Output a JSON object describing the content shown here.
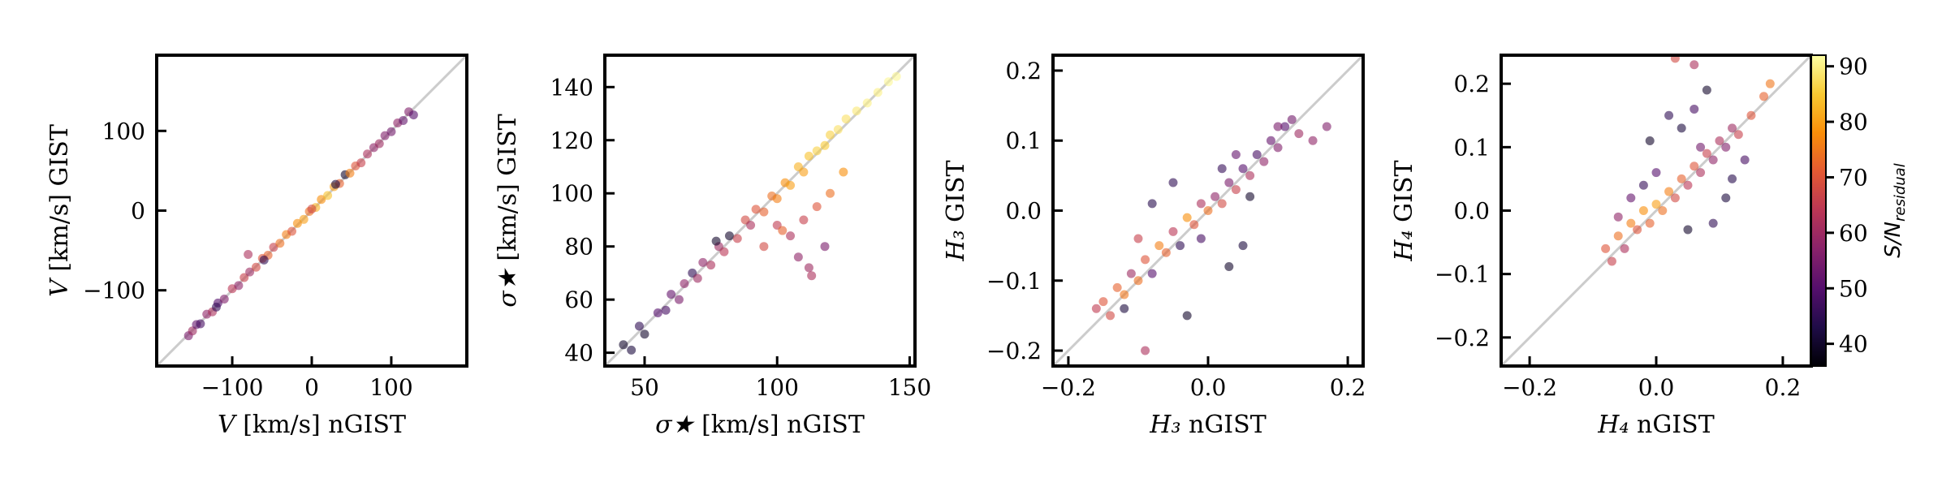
{
  "chart_data": [
    {
      "type": "scatter",
      "id": "V",
      "xlabel_sym": "V",
      "xlabel_unit": " [km/s]  nGIST",
      "ylabel_sym": "V",
      "ylabel_unit": " [km/s]  GIST",
      "xlim": [
        -195,
        195
      ],
      "ylim": [
        -195,
        195
      ],
      "xticks": [
        -100,
        0,
        100
      ],
      "yticks": [
        -100,
        0,
        100
      ],
      "xtick_labels": [
        "−100",
        "0",
        "100"
      ],
      "ytick_labels": [
        "−100",
        "0",
        "100"
      ],
      "points": [
        {
          "x": -155,
          "y": -157,
          "c": 55
        },
        {
          "x": -150,
          "y": -151,
          "c": 60
        },
        {
          "x": -145,
          "y": -143,
          "c": 52
        },
        {
          "x": -140,
          "y": -142,
          "c": 48
        },
        {
          "x": -132,
          "y": -130,
          "c": 58
        },
        {
          "x": -125,
          "y": -127,
          "c": 62
        },
        {
          "x": -118,
          "y": -116,
          "c": 50
        },
        {
          "x": -110,
          "y": -111,
          "c": 56
        },
        {
          "x": -100,
          "y": -98,
          "c": 64
        },
        {
          "x": -92,
          "y": -94,
          "c": 58
        },
        {
          "x": -85,
          "y": -84,
          "c": 66
        },
        {
          "x": -80,
          "y": -55,
          "c": 62
        },
        {
          "x": -78,
          "y": -77,
          "c": 60
        },
        {
          "x": -70,
          "y": -71,
          "c": 68
        },
        {
          "x": -62,
          "y": -60,
          "c": 70
        },
        {
          "x": -55,
          "y": -56,
          "c": 72
        },
        {
          "x": -48,
          "y": -46,
          "c": 66
        },
        {
          "x": -40,
          "y": -41,
          "c": 74
        },
        {
          "x": -32,
          "y": -30,
          "c": 76
        },
        {
          "x": -25,
          "y": -26,
          "c": 70
        },
        {
          "x": -18,
          "y": -16,
          "c": 78
        },
        {
          "x": -10,
          "y": -11,
          "c": 80
        },
        {
          "x": -3,
          "y": -1,
          "c": 74
        },
        {
          "x": 5,
          "y": 4,
          "c": 82
        },
        {
          "x": 12,
          "y": 14,
          "c": 78
        },
        {
          "x": 20,
          "y": 19,
          "c": 84
        },
        {
          "x": 28,
          "y": 30,
          "c": 80
        },
        {
          "x": 35,
          "y": 34,
          "c": 72
        },
        {
          "x": 42,
          "y": 45,
          "c": 40
        },
        {
          "x": 48,
          "y": 47,
          "c": 76
        },
        {
          "x": 55,
          "y": 56,
          "c": 70
        },
        {
          "x": 62,
          "y": 60,
          "c": 66
        },
        {
          "x": 70,
          "y": 71,
          "c": 62
        },
        {
          "x": 78,
          "y": 79,
          "c": 58
        },
        {
          "x": 85,
          "y": 84,
          "c": 60
        },
        {
          "x": 92,
          "y": 94,
          "c": 56
        },
        {
          "x": 100,
          "y": 99,
          "c": 54
        },
        {
          "x": 108,
          "y": 110,
          "c": 58
        },
        {
          "x": 115,
          "y": 113,
          "c": 52
        },
        {
          "x": 122,
          "y": 124,
          "c": 56
        },
        {
          "x": 128,
          "y": 120,
          "c": 50
        },
        {
          "x": -60,
          "y": -62,
          "c": 45
        },
        {
          "x": 30,
          "y": 33,
          "c": 42
        },
        {
          "x": 0,
          "y": 2,
          "c": 68
        },
        {
          "x": -120,
          "y": -121,
          "c": 46
        }
      ]
    },
    {
      "type": "scatter",
      "id": "sigma",
      "xlabel_sym": "σ★",
      "xlabel_unit": " [km/s]  nGIST",
      "ylabel_sym": "σ★",
      "ylabel_unit": " [km/s]  GIST",
      "xlim": [
        35,
        152
      ],
      "ylim": [
        35,
        152
      ],
      "xticks": [
        50,
        100,
        150
      ],
      "yticks": [
        40,
        60,
        80,
        100,
        120,
        140
      ],
      "xtick_labels": [
        "50",
        "100",
        "150"
      ],
      "ytick_labels": [
        "40",
        "60",
        "80",
        "100",
        "120",
        "140"
      ],
      "points": [
        {
          "x": 42,
          "y": 43,
          "c": 40
        },
        {
          "x": 45,
          "y": 41,
          "c": 42
        },
        {
          "x": 48,
          "y": 50,
          "c": 45
        },
        {
          "x": 50,
          "y": 47,
          "c": 40
        },
        {
          "x": 55,
          "y": 55,
          "c": 50
        },
        {
          "x": 58,
          "y": 56,
          "c": 48
        },
        {
          "x": 60,
          "y": 62,
          "c": 52
        },
        {
          "x": 63,
          "y": 60,
          "c": 55
        },
        {
          "x": 65,
          "y": 66,
          "c": 58
        },
        {
          "x": 68,
          "y": 70,
          "c": 45
        },
        {
          "x": 70,
          "y": 68,
          "c": 60
        },
        {
          "x": 72,
          "y": 74,
          "c": 58
        },
        {
          "x": 75,
          "y": 73,
          "c": 62
        },
        {
          "x": 78,
          "y": 80,
          "c": 60
        },
        {
          "x": 80,
          "y": 78,
          "c": 64
        },
        {
          "x": 82,
          "y": 84,
          "c": 40
        },
        {
          "x": 85,
          "y": 83,
          "c": 66
        },
        {
          "x": 88,
          "y": 90,
          "c": 68
        },
        {
          "x": 90,
          "y": 88,
          "c": 62
        },
        {
          "x": 92,
          "y": 94,
          "c": 70
        },
        {
          "x": 95,
          "y": 93,
          "c": 72
        },
        {
          "x": 98,
          "y": 99,
          "c": 74
        },
        {
          "x": 100,
          "y": 98,
          "c": 76
        },
        {
          "x": 103,
          "y": 104,
          "c": 78
        },
        {
          "x": 105,
          "y": 103,
          "c": 80
        },
        {
          "x": 108,
          "y": 110,
          "c": 82
        },
        {
          "x": 110,
          "y": 108,
          "c": 80
        },
        {
          "x": 112,
          "y": 114,
          "c": 84
        },
        {
          "x": 115,
          "y": 116,
          "c": 86
        },
        {
          "x": 118,
          "y": 118,
          "c": 85
        },
        {
          "x": 120,
          "y": 122,
          "c": 86
        },
        {
          "x": 123,
          "y": 124,
          "c": 88
        },
        {
          "x": 126,
          "y": 128,
          "c": 88
        },
        {
          "x": 130,
          "y": 131,
          "c": 89
        },
        {
          "x": 134,
          "y": 134,
          "c": 90
        },
        {
          "x": 138,
          "y": 138,
          "c": 90
        },
        {
          "x": 142,
          "y": 142,
          "c": 91
        },
        {
          "x": 145,
          "y": 144,
          "c": 91
        },
        {
          "x": 77,
          "y": 82,
          "c": 40
        },
        {
          "x": 100,
          "y": 88,
          "c": 65
        },
        {
          "x": 105,
          "y": 84,
          "c": 62
        },
        {
          "x": 110,
          "y": 90,
          "c": 66
        },
        {
          "x": 115,
          "y": 95,
          "c": 70
        },
        {
          "x": 108,
          "y": 76,
          "c": 58
        },
        {
          "x": 112,
          "y": 72,
          "c": 60
        },
        {
          "x": 118,
          "y": 80,
          "c": 55
        },
        {
          "x": 120,
          "y": 100,
          "c": 74
        },
        {
          "x": 113,
          "y": 69,
          "c": 62
        },
        {
          "x": 125,
          "y": 108,
          "c": 78
        },
        {
          "x": 95,
          "y": 80,
          "c": 68
        },
        {
          "x": 102,
          "y": 86,
          "c": 72
        }
      ]
    },
    {
      "type": "scatter",
      "id": "H3",
      "xlabel_sym": "H₃",
      "xlabel_unit": " nGIST",
      "ylabel_sym": "H₃",
      "ylabel_unit": " GIST",
      "xlim": [
        -0.222,
        0.222
      ],
      "ylim": [
        -0.222,
        0.222
      ],
      "xticks": [
        -0.2,
        0.0,
        0.2
      ],
      "yticks": [
        -0.2,
        -0.1,
        0.0,
        0.1,
        0.2
      ],
      "xtick_labels": [
        "−0.2",
        "0.0",
        "0.2"
      ],
      "ytick_labels": [
        "−0.2",
        "−0.1",
        "0.0",
        "0.1",
        "0.2"
      ],
      "points": [
        {
          "x": -0.16,
          "y": -0.14,
          "c": 65
        },
        {
          "x": -0.15,
          "y": -0.13,
          "c": 70
        },
        {
          "x": -0.14,
          "y": -0.15,
          "c": 68
        },
        {
          "x": -0.13,
          "y": -0.11,
          "c": 72
        },
        {
          "x": -0.12,
          "y": -0.12,
          "c": 75
        },
        {
          "x": -0.11,
          "y": -0.09,
          "c": 60
        },
        {
          "x": -0.1,
          "y": -0.1,
          "c": 74
        },
        {
          "x": -0.09,
          "y": -0.07,
          "c": 70
        },
        {
          "x": -0.08,
          "y": -0.09,
          "c": 50
        },
        {
          "x": -0.07,
          "y": -0.05,
          "c": 76
        },
        {
          "x": -0.06,
          "y": -0.06,
          "c": 72
        },
        {
          "x": -0.05,
          "y": -0.03,
          "c": 64
        },
        {
          "x": -0.04,
          "y": -0.05,
          "c": 45
        },
        {
          "x": -0.03,
          "y": -0.01,
          "c": 78
        },
        {
          "x": -0.02,
          "y": -0.02,
          "c": 70
        },
        {
          "x": -0.01,
          "y": 0.01,
          "c": 62
        },
        {
          "x": 0.0,
          "y": 0.0,
          "c": 74
        },
        {
          "x": 0.01,
          "y": 0.02,
          "c": 58
        },
        {
          "x": 0.02,
          "y": 0.01,
          "c": 68
        },
        {
          "x": 0.03,
          "y": 0.04,
          "c": 55
        },
        {
          "x": 0.04,
          "y": 0.03,
          "c": 66
        },
        {
          "x": 0.05,
          "y": 0.06,
          "c": 50
        },
        {
          "x": 0.06,
          "y": 0.05,
          "c": 62
        },
        {
          "x": 0.07,
          "y": 0.08,
          "c": 48
        },
        {
          "x": 0.08,
          "y": 0.07,
          "c": 58
        },
        {
          "x": 0.09,
          "y": 0.1,
          "c": 52
        },
        {
          "x": 0.1,
          "y": 0.09,
          "c": 56
        },
        {
          "x": 0.11,
          "y": 0.12,
          "c": 50
        },
        {
          "x": 0.12,
          "y": 0.13,
          "c": 54
        },
        {
          "x": 0.13,
          "y": 0.11,
          "c": 60
        },
        {
          "x": 0.15,
          "y": 0.1,
          "c": 58
        },
        {
          "x": 0.17,
          "y": 0.12,
          "c": 56
        },
        {
          "x": -0.09,
          "y": -0.2,
          "c": 62
        },
        {
          "x": -0.03,
          "y": -0.15,
          "c": 40
        },
        {
          "x": -0.05,
          "y": 0.04,
          "c": 45
        },
        {
          "x": 0.05,
          "y": -0.05,
          "c": 42
        },
        {
          "x": 0.03,
          "y": -0.08,
          "c": 40
        },
        {
          "x": -0.08,
          "y": 0.01,
          "c": 44
        },
        {
          "x": 0.02,
          "y": 0.06,
          "c": 46
        },
        {
          "x": -0.01,
          "y": -0.04,
          "c": 48
        },
        {
          "x": -0.12,
          "y": -0.14,
          "c": 42
        },
        {
          "x": 0.06,
          "y": 0.02,
          "c": 40
        },
        {
          "x": 0.1,
          "y": 0.12,
          "c": 55
        },
        {
          "x": -0.1,
          "y": -0.04,
          "c": 66
        },
        {
          "x": 0.04,
          "y": 0.08,
          "c": 52
        }
      ]
    },
    {
      "type": "scatter",
      "id": "H4",
      "xlabel_sym": "H₄",
      "xlabel_unit": " nGIST",
      "ylabel_sym": "H₄",
      "ylabel_unit": " GIST",
      "xlim": [
        -0.245,
        0.245
      ],
      "ylim": [
        -0.245,
        0.245
      ],
      "xticks": [
        -0.2,
        0.0,
        0.2
      ],
      "yticks": [
        -0.2,
        -0.1,
        0.0,
        0.1,
        0.2
      ],
      "xtick_labels": [
        "−0.2",
        "0.0",
        "0.2"
      ],
      "ytick_labels": [
        "−0.2",
        "−0.1",
        "0.0",
        "0.1",
        "0.2"
      ],
      "points": [
        {
          "x": -0.08,
          "y": -0.06,
          "c": 70
        },
        {
          "x": -0.07,
          "y": -0.08,
          "c": 66
        },
        {
          "x": -0.06,
          "y": -0.04,
          "c": 74
        },
        {
          "x": -0.05,
          "y": -0.06,
          "c": 62
        },
        {
          "x": -0.04,
          "y": -0.02,
          "c": 76
        },
        {
          "x": -0.03,
          "y": -0.03,
          "c": 70
        },
        {
          "x": -0.02,
          "y": 0.0,
          "c": 78
        },
        {
          "x": -0.01,
          "y": -0.02,
          "c": 72
        },
        {
          "x": 0.0,
          "y": 0.01,
          "c": 80
        },
        {
          "x": 0.01,
          "y": 0.0,
          "c": 74
        },
        {
          "x": 0.02,
          "y": 0.03,
          "c": 76
        },
        {
          "x": 0.03,
          "y": 0.02,
          "c": 68
        },
        {
          "x": 0.04,
          "y": 0.05,
          "c": 72
        },
        {
          "x": 0.05,
          "y": 0.04,
          "c": 64
        },
        {
          "x": 0.06,
          "y": 0.07,
          "c": 70
        },
        {
          "x": 0.07,
          "y": 0.06,
          "c": 62
        },
        {
          "x": 0.08,
          "y": 0.09,
          "c": 66
        },
        {
          "x": 0.09,
          "y": 0.08,
          "c": 58
        },
        {
          "x": 0.1,
          "y": 0.11,
          "c": 62
        },
        {
          "x": 0.11,
          "y": 0.1,
          "c": 56
        },
        {
          "x": 0.12,
          "y": 0.13,
          "c": 60
        },
        {
          "x": 0.13,
          "y": 0.12,
          "c": 66
        },
        {
          "x": 0.15,
          "y": 0.15,
          "c": 70
        },
        {
          "x": 0.17,
          "y": 0.18,
          "c": 72
        },
        {
          "x": 0.18,
          "y": 0.2,
          "c": 75
        },
        {
          "x": -0.01,
          "y": 0.11,
          "c": 40
        },
        {
          "x": 0.02,
          "y": 0.15,
          "c": 45
        },
        {
          "x": 0.04,
          "y": 0.13,
          "c": 42
        },
        {
          "x": 0.06,
          "y": 0.16,
          "c": 48
        },
        {
          "x": 0.08,
          "y": 0.19,
          "c": 40
        },
        {
          "x": 0.03,
          "y": 0.24,
          "c": 68
        },
        {
          "x": 0.06,
          "y": 0.23,
          "c": 62
        },
        {
          "x": 0.09,
          "y": -0.02,
          "c": 45
        },
        {
          "x": 0.11,
          "y": 0.02,
          "c": 42
        },
        {
          "x": 0.0,
          "y": 0.06,
          "c": 50
        },
        {
          "x": -0.02,
          "y": 0.04,
          "c": 46
        },
        {
          "x": 0.05,
          "y": -0.03,
          "c": 40
        },
        {
          "x": 0.12,
          "y": 0.05,
          "c": 44
        },
        {
          "x": -0.04,
          "y": 0.02,
          "c": 52
        },
        {
          "x": 0.07,
          "y": 0.1,
          "c": 54
        },
        {
          "x": 0.14,
          "y": 0.08,
          "c": 48
        },
        {
          "x": -0.06,
          "y": -0.01,
          "c": 58
        }
      ]
    }
  ],
  "colorbar": {
    "label": "S/N",
    "label_sub": "residual",
    "min": 36,
    "max": 92,
    "ticks": [
      40,
      50,
      60,
      70,
      80,
      90
    ],
    "tick_labels": [
      "40",
      "50",
      "60",
      "70",
      "80",
      "90"
    ]
  },
  "colors": {
    "identity_line": "#cccccc",
    "frame": "#000000",
    "colormap": [
      "#000004",
      "#1f0c48",
      "#550f6d",
      "#88226a",
      "#ba3655",
      "#e35933",
      "#f98e09",
      "#f8c932",
      "#fcffa4"
    ]
  }
}
